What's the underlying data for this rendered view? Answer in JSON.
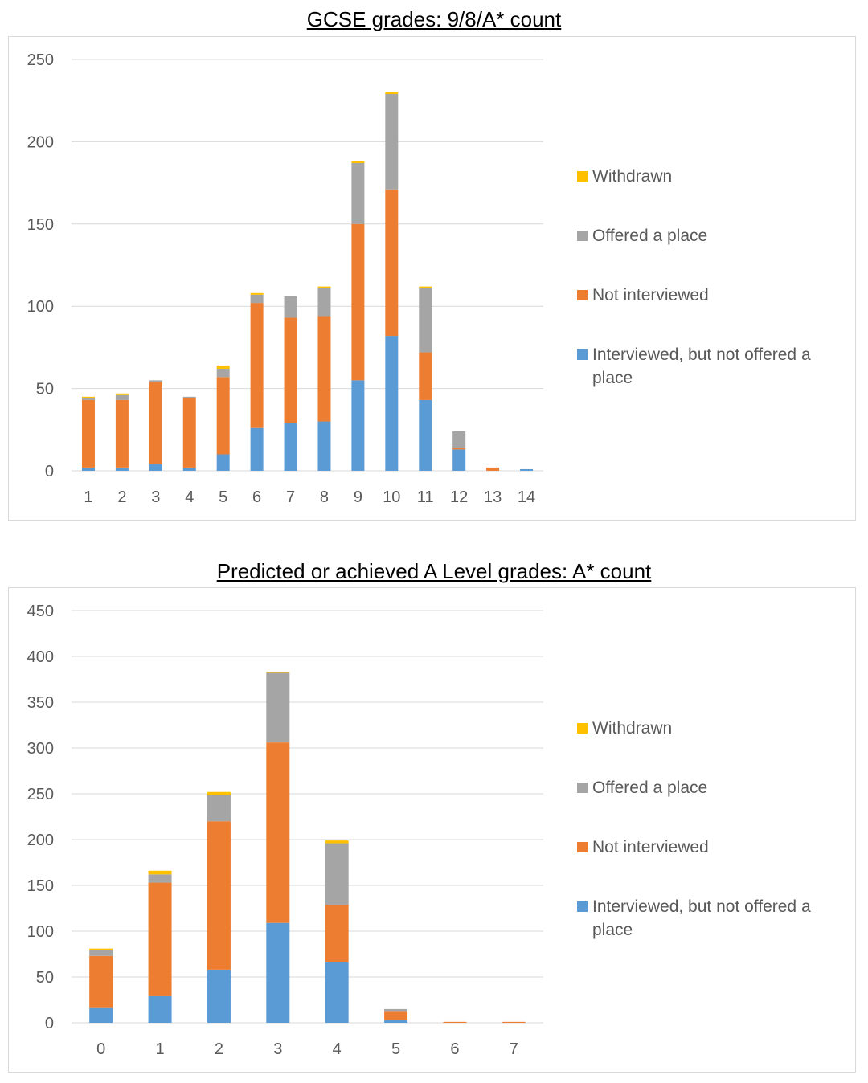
{
  "colors": {
    "interviewed": "#5b9bd5",
    "not_interviewed": "#ed7d31",
    "offered": "#a5a5a5",
    "withdrawn": "#ffc000",
    "grid": "#d9d9d9",
    "text": "#595959"
  },
  "legend": [
    {
      "label": "Withdrawn",
      "color": "#ffc000"
    },
    {
      "label": "Offered a place",
      "color": "#a5a5a5"
    },
    {
      "label": "Not interviewed",
      "color": "#ed7d31"
    },
    {
      "label": "Interviewed, but not offered a place",
      "color": "#5b9bd5"
    }
  ],
  "chart_data": [
    {
      "type": "bar",
      "stacked": true,
      "title": "GCSE grades: 9/8/A* count",
      "categories": [
        "1",
        "2",
        "3",
        "4",
        "5",
        "6",
        "7",
        "8",
        "9",
        "10",
        "11",
        "12",
        "13",
        "14"
      ],
      "ylim": [
        0,
        250
      ],
      "yticks": [
        0,
        50,
        100,
        150,
        200,
        250
      ],
      "grid": true,
      "legend_position": "right",
      "series": [
        {
          "name": "Interviewed, but not offered a place",
          "color": "#5b9bd5",
          "values": [
            2,
            2,
            4,
            2,
            10,
            26,
            29,
            30,
            55,
            82,
            43,
            13,
            0,
            1
          ]
        },
        {
          "name": "Not interviewed",
          "color": "#ed7d31",
          "values": [
            41,
            41,
            50,
            42,
            47,
            76,
            64,
            64,
            95,
            89,
            29,
            1,
            2,
            0
          ]
        },
        {
          "name": "Offered a place",
          "color": "#a5a5a5",
          "values": [
            1,
            3,
            1,
            1,
            5,
            5,
            13,
            17,
            37,
            58,
            39,
            10,
            0,
            0
          ]
        },
        {
          "name": "Withdrawn",
          "color": "#ffc000",
          "values": [
            1,
            1,
            0,
            0,
            2,
            1,
            0,
            1,
            1,
            1,
            1,
            0,
            0,
            0
          ]
        }
      ]
    },
    {
      "type": "bar",
      "stacked": true,
      "title": "Predicted or achieved A Level grades: A* count",
      "categories": [
        "0",
        "1",
        "2",
        "3",
        "4",
        "5",
        "6",
        "7"
      ],
      "ylim": [
        0,
        450
      ],
      "yticks": [
        0,
        50,
        100,
        150,
        200,
        250,
        300,
        350,
        400,
        450
      ],
      "grid": true,
      "legend_position": "right",
      "series": [
        {
          "name": "Interviewed, but not offered a place",
          "color": "#5b9bd5",
          "values": [
            16,
            29,
            58,
            109,
            66,
            3,
            0,
            0
          ]
        },
        {
          "name": "Not interviewed",
          "color": "#ed7d31",
          "values": [
            57,
            124,
            162,
            197,
            63,
            9,
            1,
            1
          ]
        },
        {
          "name": "Offered a place",
          "color": "#a5a5a5",
          "values": [
            6,
            9,
            29,
            76,
            67,
            3,
            0,
            0
          ]
        },
        {
          "name": "Withdrawn",
          "color": "#ffc000",
          "values": [
            2,
            4,
            3,
            1,
            3,
            0,
            0,
            0
          ]
        }
      ]
    }
  ]
}
